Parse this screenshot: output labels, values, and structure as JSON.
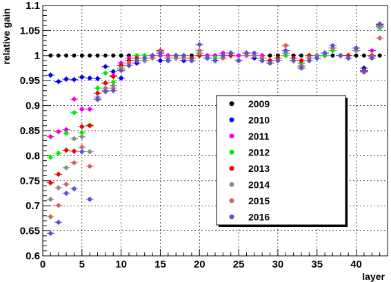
{
  "chart_data": {
    "type": "scatter",
    "xlabel": "layer",
    "ylabel": "relative gain",
    "xlim": [
      0,
      44
    ],
    "ylim": [
      0.6,
      1.1
    ],
    "x_ticks": [
      0,
      5,
      10,
      15,
      20,
      25,
      30,
      35,
      40
    ],
    "y_ticks": [
      0.6,
      0.65,
      0.7,
      0.75,
      0.8,
      0.85,
      0.9,
      0.95,
      1,
      1.05,
      1.1
    ],
    "y_tick_labels": [
      "0.6",
      "0.65",
      "0.7",
      "0.75",
      "0.8",
      "0.85",
      "0.9",
      "0.95",
      "1",
      "1.05",
      "1.1"
    ],
    "grid": true,
    "legend_placement": "center-right",
    "series": [
      {
        "name": "2009",
        "color": "#000000",
        "x": [
          1,
          2,
          3,
          4,
          5,
          6,
          7,
          8,
          9,
          10,
          11,
          12,
          13,
          14,
          15,
          16,
          17,
          18,
          19,
          20,
          21,
          22,
          23,
          24,
          25,
          26,
          27,
          28,
          29,
          30,
          31,
          32,
          33,
          34,
          35,
          36,
          37,
          38,
          39,
          40,
          41,
          42,
          43
        ],
        "y": [
          1,
          1,
          1,
          1,
          1,
          1,
          1,
          1,
          1,
          1,
          1,
          1,
          1,
          1,
          1,
          1,
          1,
          1,
          1,
          1,
          1,
          1,
          1,
          1,
          1,
          1,
          1,
          1,
          1,
          1,
          1,
          1,
          1,
          1,
          1,
          1,
          1,
          1,
          1,
          1,
          1,
          1,
          1
        ]
      },
      {
        "name": "2010",
        "color": "#0000ee",
        "x": [
          1,
          2,
          3,
          4,
          5,
          6,
          7,
          8,
          9,
          10,
          11,
          12,
          13,
          14,
          15,
          16,
          17,
          18,
          19,
          20,
          21,
          22,
          23,
          24,
          25,
          26,
          27,
          28,
          29,
          30,
          31,
          32,
          33,
          34,
          35,
          36,
          37,
          38,
          39,
          40,
          41,
          42,
          43
        ],
        "y": [
          0.961,
          0.948,
          0.953,
          0.952,
          0.957,
          0.955,
          0.954,
          0.978,
          0.968,
          0.955,
          0.99,
          0.985,
          0.99,
          0.995,
          0.99,
          0.99,
          0.995,
          0.99,
          0.99,
          1.0,
          0.995,
          0.99,
          0.995,
          1.0,
          0.99,
          1.0,
          0.995,
          0.99,
          0.99,
          0.99,
          1.01,
          0.99,
          0.985,
          0.995,
          0.995,
          1.0,
          1.01,
          1.0,
          1.0,
          1.01,
          0.975,
          1.0,
          1.058
        ]
      },
      {
        "name": "2011",
        "color": "#ee00ee",
        "x": [
          1,
          2,
          3,
          4,
          5,
          6,
          7,
          8,
          9,
          10,
          11,
          12,
          13,
          14,
          15,
          16,
          17,
          18,
          19,
          20,
          21,
          22,
          23,
          24,
          25,
          26,
          27,
          28,
          29,
          30,
          31,
          32,
          33,
          34,
          35,
          36,
          37,
          38,
          39,
          40,
          41,
          42,
          43
        ],
        "y": [
          0.838,
          0.848,
          0.852,
          0.913,
          0.893,
          0.893,
          0.925,
          0.945,
          0.96,
          0.985,
          0.995,
          0.99,
          0.995,
          1.0,
          1.0,
          1.0,
          1.0,
          0.995,
          0.995,
          1.005,
          1.0,
          1.0,
          1.005,
          1.0,
          1.0,
          1.005,
          1.0,
          1.0,
          0.99,
          0.99,
          1.005,
          0.99,
          0.99,
          1.0,
          1.0,
          1.005,
          1.015,
          1.0,
          1.0,
          1.01,
          0.97,
          1.01,
          1.06
        ]
      },
      {
        "name": "2012",
        "color": "#00ee00",
        "x": [
          1,
          2,
          3,
          4,
          5,
          6,
          7,
          8,
          9,
          10,
          11,
          12,
          13,
          14,
          15,
          16,
          17,
          18,
          19,
          20,
          21,
          22,
          23,
          24,
          25,
          26,
          27,
          28,
          29,
          30,
          31,
          32,
          33,
          34,
          35,
          36,
          37,
          38,
          39,
          40,
          41,
          42,
          43
        ],
        "y": [
          0.797,
          0.805,
          0.845,
          0.886,
          0.846,
          0.861,
          0.935,
          0.965,
          0.947,
          0.98,
          0.99,
          1.0,
          1.0,
          1.0,
          1.005,
          0.995,
          1.0,
          1.0,
          0.995,
          1.005,
          0.995,
          0.995,
          1.0,
          1.0,
          0.99,
          1.005,
          1.0,
          0.995,
          0.99,
          0.995,
          1.0,
          0.99,
          0.985,
          1.0,
          1.0,
          1.0,
          1.01,
          1.0,
          1.0,
          1.01,
          0.97,
          1.0,
          1.055
        ]
      },
      {
        "name": "2013",
        "color": "#ee0000",
        "x": [
          1,
          2,
          3,
          4,
          5,
          6,
          7,
          8,
          9,
          10,
          11,
          12,
          13,
          14,
          15,
          16,
          17,
          18,
          19,
          20,
          21,
          22,
          23,
          24,
          25,
          26,
          27,
          28,
          29,
          30,
          31,
          32,
          33,
          34,
          35,
          36,
          37,
          38,
          39,
          40,
          41,
          42,
          43
        ],
        "y": [
          0.746,
          0.763,
          0.811,
          0.809,
          0.858,
          0.86,
          0.925,
          0.945,
          0.958,
          0.98,
          0.99,
          0.995,
          0.99,
          1.0,
          1.01,
          0.995,
          1.0,
          1.0,
          0.995,
          1.0,
          0.995,
          0.99,
          1.0,
          1.0,
          0.99,
          1.005,
          1.0,
          0.995,
          0.99,
          0.995,
          1.02,
          0.995,
          0.99,
          1.0,
          1.0,
          1.005,
          1.015,
          1.0,
          1.0,
          1.01,
          0.97,
          1.0,
          1.062
        ]
      },
      {
        "name": "2014",
        "color": "#888888",
        "x": [
          1,
          2,
          3,
          4,
          5,
          6,
          7,
          8,
          9,
          10,
          11,
          12,
          13,
          14,
          15,
          16,
          17,
          18,
          19,
          20,
          21,
          22,
          23,
          24,
          25,
          26,
          27,
          28,
          29,
          30,
          31,
          32,
          33,
          34,
          35,
          36,
          37,
          38,
          39,
          40,
          41,
          42,
          43
        ],
        "y": [
          0.713,
          0.736,
          0.776,
          0.834,
          0.838,
          0.808,
          0.917,
          0.935,
          0.94,
          0.975,
          0.985,
          0.99,
          0.99,
          0.995,
          1.005,
          0.995,
          0.995,
          1.0,
          0.99,
          1.005,
          0.995,
          0.99,
          1.0,
          1.005,
          0.99,
          1.0,
          1.0,
          0.995,
          0.985,
          0.99,
          1.005,
          0.99,
          0.98,
          0.995,
          1.0,
          1.005,
          1.015,
          1.0,
          0.995,
          1.01,
          0.968,
          0.998,
          1.058
        ]
      },
      {
        "name": "2015",
        "color": "#cc6666",
        "x": [
          1,
          2,
          3,
          4,
          5,
          6,
          7,
          8,
          9,
          10,
          11,
          12,
          13,
          14,
          15,
          16,
          17,
          18,
          19,
          20,
          21,
          22,
          23,
          24,
          25,
          26,
          27,
          28,
          29,
          30,
          31,
          32,
          33,
          34,
          35,
          36,
          37,
          38,
          39,
          40,
          41,
          42,
          43
        ],
        "y": [
          0.678,
          0.701,
          0.743,
          0.786,
          0.817,
          0.779,
          0.912,
          0.93,
          0.935,
          0.972,
          0.985,
          0.99,
          0.995,
          0.995,
          1.008,
          0.995,
          0.995,
          0.995,
          0.99,
          1.01,
          0.995,
          0.99,
          0.995,
          1.005,
          0.99,
          1.0,
          1.0,
          0.995,
          0.985,
          0.99,
          1.02,
          0.99,
          0.978,
          0.99,
          0.995,
          1.005,
          1.015,
          1.0,
          0.995,
          1.015,
          0.967,
          0.995,
          1.035
        ]
      },
      {
        "name": "2016",
        "color": "#5555cc",
        "x": [
          1,
          2,
          3,
          4,
          5,
          6,
          7,
          8,
          9,
          10,
          11,
          12,
          13,
          14,
          15,
          16,
          17,
          18,
          19,
          20,
          21,
          22,
          23,
          24,
          25,
          26,
          27,
          28,
          29,
          30,
          31,
          32,
          33,
          34,
          35,
          36,
          37,
          38,
          39,
          40,
          41,
          42,
          43
        ],
        "y": [
          0.645,
          0.667,
          0.725,
          0.734,
          0.808,
          0.713,
          0.913,
          0.928,
          0.93,
          0.97,
          0.98,
          0.99,
          0.995,
          1.0,
          1.005,
          0.99,
          1.0,
          1.0,
          0.99,
          1.022,
          0.995,
          0.99,
          1.0,
          1.005,
          0.99,
          1.005,
          1.005,
          0.99,
          0.985,
          0.99,
          1.01,
          0.99,
          0.975,
          0.99,
          0.995,
          1.005,
          1.02,
          1.0,
          0.995,
          1.015,
          0.968,
          0.995,
          1.063
        ]
      }
    ]
  }
}
